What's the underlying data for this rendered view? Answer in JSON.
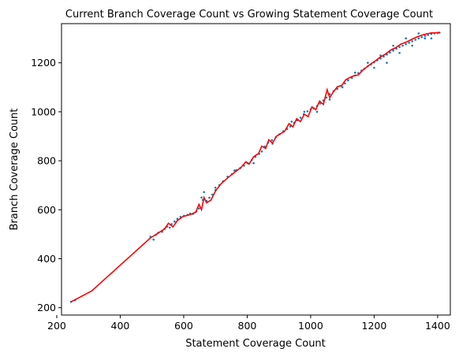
{
  "chart_data": {
    "type": "scatter",
    "title": "Current Branch Coverage Count vs Growing Statement Coverage Count",
    "xlabel": "Statement Coverage Count",
    "ylabel": "Branch Coverage Count",
    "xlim": [
      215,
      1440
    ],
    "ylim": [
      170,
      1360
    ],
    "xticks": [
      200,
      400,
      600,
      800,
      1000,
      1200,
      1400
    ],
    "yticks": [
      200,
      400,
      600,
      800,
      1000,
      1200
    ],
    "grid": false,
    "colors": {
      "scatter": "#1f77b4",
      "line": "#ff0000"
    },
    "series": [
      {
        "type": "scatter",
        "points": [
          [
            245,
            224
          ],
          [
            258,
            231
          ],
          [
            495,
            490
          ],
          [
            505,
            478
          ],
          [
            512,
            497
          ],
          [
            520,
            506
          ],
          [
            532,
            510
          ],
          [
            540,
            522
          ],
          [
            548,
            531
          ],
          [
            556,
            527
          ],
          [
            562,
            541
          ],
          [
            571,
            552
          ],
          [
            580,
            563
          ],
          [
            590,
            571
          ],
          [
            601,
            575
          ],
          [
            612,
            579
          ],
          [
            620,
            584
          ],
          [
            629,
            583
          ],
          [
            640,
            593
          ],
          [
            648,
            605
          ],
          [
            656,
            650
          ],
          [
            664,
            672
          ],
          [
            672,
            636
          ],
          [
            681,
            649
          ],
          [
            690,
            662
          ],
          [
            700,
            680
          ],
          [
            712,
            700
          ],
          [
            724,
            716
          ],
          [
            738,
            735
          ],
          [
            752,
            745
          ],
          [
            766,
            762
          ],
          [
            778,
            770
          ],
          [
            790,
            780
          ],
          [
            802,
            790
          ],
          [
            814,
            803
          ],
          [
            826,
            816
          ],
          [
            838,
            828
          ],
          [
            846,
            838
          ],
          [
            855,
            858
          ],
          [
            866,
            874
          ],
          [
            878,
            884
          ],
          [
            890,
            896
          ],
          [
            902,
            908
          ],
          [
            914,
            921
          ],
          [
            926,
            930
          ],
          [
            936,
            940
          ],
          [
            948,
            955
          ],
          [
            958,
            965
          ],
          [
            968,
            976
          ],
          [
            978,
            990
          ],
          [
            990,
            1002
          ],
          [
            1000,
            1010
          ],
          [
            1010,
            1014
          ],
          [
            1020,
            1024
          ],
          [
            1030,
            1034
          ],
          [
            1040,
            1046
          ],
          [
            1050,
            1058
          ],
          [
            1060,
            1072
          ],
          [
            1072,
            1084
          ],
          [
            1084,
            1094
          ],
          [
            1096,
            1106
          ],
          [
            1108,
            1116
          ],
          [
            1118,
            1128
          ],
          [
            1130,
            1138
          ],
          [
            1140,
            1148
          ],
          [
            1150,
            1158
          ],
          [
            1160,
            1168
          ],
          [
            1170,
            1176
          ],
          [
            1180,
            1186
          ],
          [
            1190,
            1194
          ],
          [
            1200,
            1202
          ],
          [
            1210,
            1210
          ],
          [
            1220,
            1218
          ],
          [
            1230,
            1226
          ],
          [
            1240,
            1234
          ],
          [
            1250,
            1242
          ],
          [
            1260,
            1250
          ],
          [
            1270,
            1258
          ],
          [
            1280,
            1264
          ],
          [
            1290,
            1270
          ],
          [
            1300,
            1276
          ],
          [
            1310,
            1282
          ],
          [
            1320,
            1288
          ],
          [
            1330,
            1294
          ],
          [
            1340,
            1300
          ],
          [
            1350,
            1305
          ],
          [
            1360,
            1310
          ],
          [
            1370,
            1314
          ],
          [
            1380,
            1318
          ],
          [
            1390,
            1320
          ],
          [
            1400,
            1322
          ],
          [
            1406,
            1323
          ],
          [
            660,
            640
          ],
          [
            700,
            690
          ],
          [
            760,
            760
          ],
          [
            820,
            790
          ],
          [
            880,
            870
          ],
          [
            940,
            960
          ],
          [
            980,
            1000
          ],
          [
            1020,
            1000
          ],
          [
            1060,
            1050
          ],
          [
            1100,
            1100
          ],
          [
            1140,
            1160
          ],
          [
            1180,
            1200
          ],
          [
            1220,
            1230
          ],
          [
            1260,
            1270
          ],
          [
            1300,
            1300
          ],
          [
            1340,
            1320
          ],
          [
            1200,
            1180
          ],
          [
            1240,
            1200
          ],
          [
            1280,
            1240
          ],
          [
            1320,
            1270
          ],
          [
            1360,
            1300
          ],
          [
            1380,
            1300
          ]
        ]
      },
      {
        "type": "line",
        "points": [
          [
            245,
            224
          ],
          [
            310,
            268
          ],
          [
            495,
            485
          ],
          [
            520,
            505
          ],
          [
            540,
            522
          ],
          [
            552,
            545
          ],
          [
            566,
            530
          ],
          [
            580,
            556
          ],
          [
            598,
            572
          ],
          [
            620,
            580
          ],
          [
            638,
            590
          ],
          [
            648,
            622
          ],
          [
            656,
            600
          ],
          [
            664,
            650
          ],
          [
            672,
            628
          ],
          [
            686,
            640
          ],
          [
            700,
            676
          ],
          [
            718,
            706
          ],
          [
            740,
            732
          ],
          [
            760,
            752
          ],
          [
            780,
            772
          ],
          [
            796,
            796
          ],
          [
            806,
            786
          ],
          [
            820,
            816
          ],
          [
            836,
            830
          ],
          [
            846,
            860
          ],
          [
            858,
            850
          ],
          [
            868,
            886
          ],
          [
            880,
            872
          ],
          [
            892,
            900
          ],
          [
            904,
            910
          ],
          [
            918,
            920
          ],
          [
            932,
            952
          ],
          [
            944,
            938
          ],
          [
            956,
            972
          ],
          [
            968,
            960
          ],
          [
            980,
            990
          ],
          [
            992,
            980
          ],
          [
            1004,
            1020
          ],
          [
            1016,
            1008
          ],
          [
            1028,
            1044
          ],
          [
            1040,
            1030
          ],
          [
            1052,
            1090
          ],
          [
            1060,
            1058
          ],
          [
            1072,
            1082
          ],
          [
            1084,
            1102
          ],
          [
            1098,
            1108
          ],
          [
            1110,
            1130
          ],
          [
            1124,
            1140
          ],
          [
            1138,
            1148
          ],
          [
            1150,
            1150
          ],
          [
            1164,
            1170
          ],
          [
            1176,
            1182
          ],
          [
            1190,
            1196
          ],
          [
            1206,
            1210
          ],
          [
            1220,
            1224
          ],
          [
            1236,
            1236
          ],
          [
            1252,
            1252
          ],
          [
            1268,
            1262
          ],
          [
            1284,
            1276
          ],
          [
            1300,
            1284
          ],
          [
            1316,
            1294
          ],
          [
            1332,
            1304
          ],
          [
            1348,
            1312
          ],
          [
            1364,
            1318
          ],
          [
            1380,
            1322
          ],
          [
            1396,
            1323
          ],
          [
            1406,
            1324
          ]
        ]
      }
    ]
  }
}
